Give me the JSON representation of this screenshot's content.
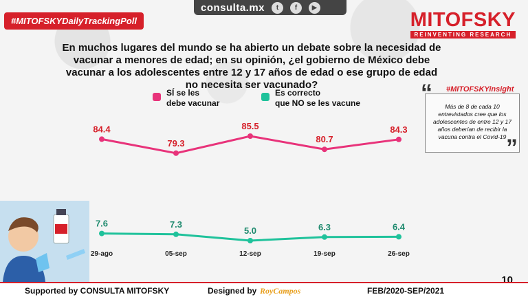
{
  "header": {
    "tag": "#MITOFSKYDailyTrackingPoll",
    "site": "consulta.mx",
    "social": [
      "twitter-icon",
      "facebook-icon",
      "youtube-icon"
    ],
    "brand": "MITOFSKY",
    "brand_sub": "REINVENTING RESEARCH",
    "accent": "#d6202a"
  },
  "question": "En muchos lugares del mundo se ha abierto un debate sobre la necesidad de vacunar a menores de edad; en su opinión, ¿el gobierno de México debe vacunar a los adolescentes entre 12 y 17 años de edad o ese grupo de edad no necesita ser vacunado?",
  "legend": [
    {
      "line1": "SÍ se les",
      "line2": "debe vacunar",
      "color": "#e8337a"
    },
    {
      "line1": "Es correcto",
      "line2": "que NO se les vacune",
      "color": "#1fc29b"
    }
  ],
  "insight": {
    "title": "#MITOFSKYinsight",
    "text": "Más de 8 de cada 10 entrevistados cree que los adolescentes de entre 12 y 17 años deberían de recibir la vacuna contra el Covid-19"
  },
  "chart_data": {
    "type": "line",
    "categories": [
      "29-ago",
      "05-sep",
      "12-sep",
      "19-sep",
      "26-sep"
    ],
    "series": [
      {
        "name": "SÍ se les debe vacunar",
        "values": [
          84.4,
          79.3,
          85.5,
          80.7,
          84.3
        ],
        "color": "#e8337a"
      },
      {
        "name": "Es correcto que NO se les vacune",
        "values": [
          7.6,
          7.3,
          5.0,
          6.3,
          6.4
        ],
        "color": "#1fc29b"
      }
    ]
  },
  "footer": {
    "supported": "Supported by   CONSULTA   MITOFSKY",
    "designed": "Designed by",
    "designer": "RoyCampos",
    "period": "FEB/2020-SEP/2021",
    "page": "10"
  }
}
